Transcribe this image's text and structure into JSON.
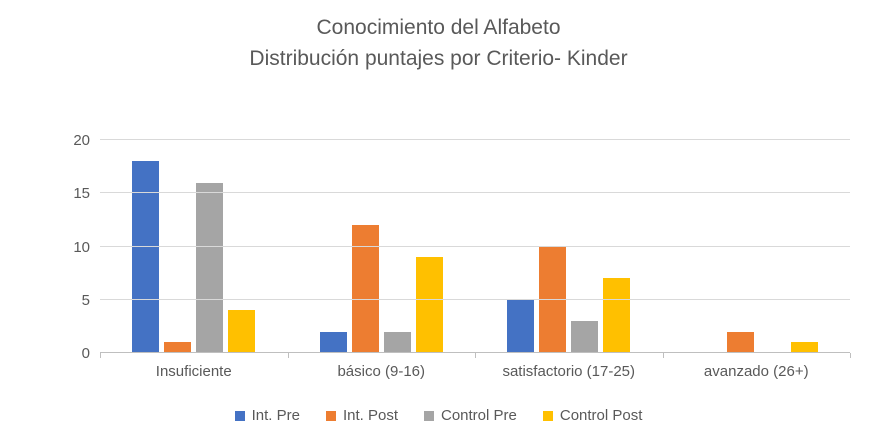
{
  "chart_data": {
    "type": "bar",
    "title": "Conocimiento del Alfabeto",
    "subtitle": "Distribución puntajes por Criterio- Kinder",
    "categories": [
      "Insuficiente",
      "básico (9-16)",
      "satisfactorio (17-25)",
      "avanzado (26+)"
    ],
    "series": [
      {
        "name": "Int. Pre",
        "color": "#4472C4",
        "values": [
          18,
          2,
          5,
          0
        ]
      },
      {
        "name": "Int. Post",
        "color": "#ED7D31",
        "values": [
          1,
          12,
          10,
          2
        ]
      },
      {
        "name": "Control Pre",
        "color": "#A5A5A5",
        "values": [
          16,
          2,
          3,
          0
        ]
      },
      {
        "name": "Control Post",
        "color": "#FFC000",
        "values": [
          4,
          9,
          7,
          1
        ]
      }
    ],
    "xlabel": "",
    "ylabel": "",
    "ylim": [
      0,
      20
    ],
    "yticks": [
      0,
      5,
      10,
      15,
      20
    ],
    "grid": "horizontal",
    "legend_position": "bottom"
  }
}
